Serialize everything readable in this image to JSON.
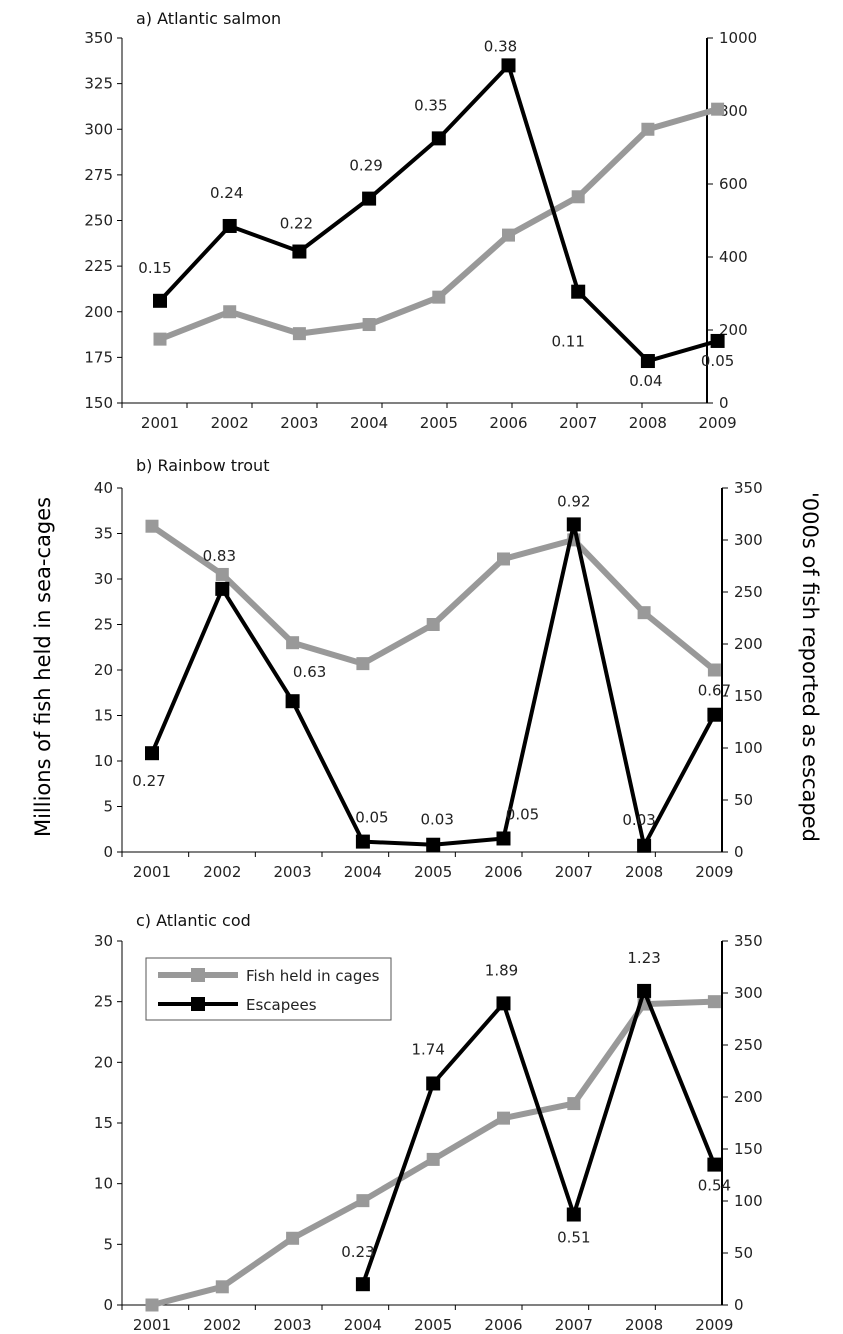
{
  "figure": {
    "left_axis_label": "Millions of fish held in sea-cages",
    "right_axis_label": "'000s of fish reported as escaped",
    "legend": {
      "cages": "Fish held in cages",
      "escapees": "Escapees"
    }
  },
  "colors": {
    "cages": "#999999",
    "escapees": "#000000",
    "axis": "#000000"
  },
  "chart_data": [
    {
      "type": "line",
      "title": "a) Atlantic salmon",
      "x": [
        "2001",
        "2002",
        "2003",
        "2004",
        "2005",
        "2006",
        "2007",
        "2008",
        "2009"
      ],
      "y_left": {
        "min": 150,
        "max": 350,
        "ticks": [
          150,
          175,
          200,
          225,
          250,
          275,
          300,
          325,
          350
        ]
      },
      "y_right": {
        "min": 0,
        "max": 1000,
        "ticks": [
          0,
          200,
          400,
          600,
          800,
          1000
        ]
      },
      "series": [
        {
          "name": "Fish held in cages",
          "axis": "left",
          "values": [
            185,
            200,
            188,
            193,
            208,
            242,
            263,
            300,
            311
          ]
        },
        {
          "name": "Escapees",
          "axis": "right",
          "values": [
            280,
            485,
            415,
            560,
            725,
            925,
            305,
            115,
            170
          ]
        }
      ],
      "annotations": [
        "0.15",
        "0.24",
        "0.22",
        "0.29",
        "0.35",
        "0.38",
        "0.11",
        "0.04",
        "0.05"
      ]
    },
    {
      "type": "line",
      "title": "b) Rainbow trout",
      "x": [
        "2001",
        "2002",
        "2003",
        "2004",
        "2005",
        "2006",
        "2007",
        "2008",
        "2009"
      ],
      "y_left": {
        "min": 0,
        "max": 40,
        "ticks": [
          0,
          5,
          10,
          15,
          20,
          25,
          30,
          35,
          40
        ]
      },
      "y_right": {
        "min": 0,
        "max": 350,
        "ticks": [
          0,
          50,
          100,
          150,
          200,
          250,
          300,
          350
        ]
      },
      "series": [
        {
          "name": "Fish held in cages",
          "axis": "left",
          "values": [
            35.8,
            30.5,
            23,
            20.7,
            25,
            32.2,
            34.3,
            26.3,
            20
          ]
        },
        {
          "name": "Escapees",
          "axis": "right",
          "values": [
            95,
            253,
            145,
            10,
            7,
            13,
            315,
            6,
            132
          ]
        }
      ],
      "annotations": [
        "0.27",
        "0.83",
        "0.63",
        "0.05",
        "0.03",
        "0.05",
        "0.92",
        "0.03",
        "0.67"
      ]
    },
    {
      "type": "line",
      "title": "c) Atlantic cod",
      "x": [
        "2001",
        "2002",
        "2003",
        "2004",
        "2005",
        "2006",
        "2007",
        "2008",
        "2009"
      ],
      "y_left": {
        "min": 0,
        "max": 30,
        "ticks": [
          0,
          5,
          10,
          15,
          20,
          25,
          30
        ]
      },
      "y_right": {
        "min": 0,
        "max": 350,
        "ticks": [
          0,
          50,
          100,
          150,
          200,
          250,
          300,
          350
        ]
      },
      "series": [
        {
          "name": "Fish held in cages",
          "axis": "left",
          "values": [
            0,
            1.5,
            5.5,
            8.6,
            12,
            15.4,
            16.6,
            24.8,
            25
          ]
        },
        {
          "name": "Escapees",
          "axis": "right",
          "values": [
            null,
            null,
            null,
            20,
            213,
            290,
            87,
            302,
            135
          ]
        }
      ],
      "annotations": [
        "",
        "",
        "",
        "0.23",
        "1.74",
        "1.89",
        "0.51",
        "1.23",
        "0.54"
      ]
    }
  ]
}
